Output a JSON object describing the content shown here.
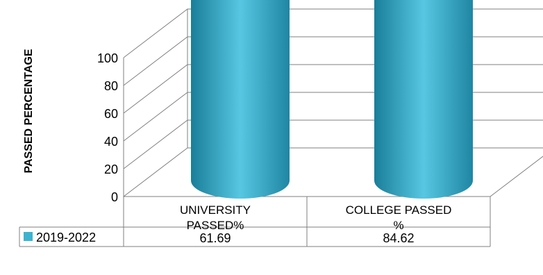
{
  "chart_data": {
    "type": "bar",
    "style": "3d-cylinder",
    "categories": [
      "UNIVERSITY PASSED%",
      "COLLEGE PASSED %"
    ],
    "category_lines": [
      [
        "UNIVERSITY",
        "PASSED%"
      ],
      [
        "COLLEGE PASSED",
        "%"
      ]
    ],
    "series": [
      {
        "name": "2019-2022",
        "values": [
          61.69,
          84.62
        ],
        "value_labels": [
          "61.69",
          "84.62"
        ],
        "color": "#3db3cf"
      }
    ],
    "ylabel": "PASSED PERCENTAGE",
    "ylim": [
      0,
      100
    ],
    "yticks": [
      0,
      20,
      40,
      60,
      80,
      100
    ],
    "grid": true,
    "data_table": true,
    "legend": "data-table"
  }
}
